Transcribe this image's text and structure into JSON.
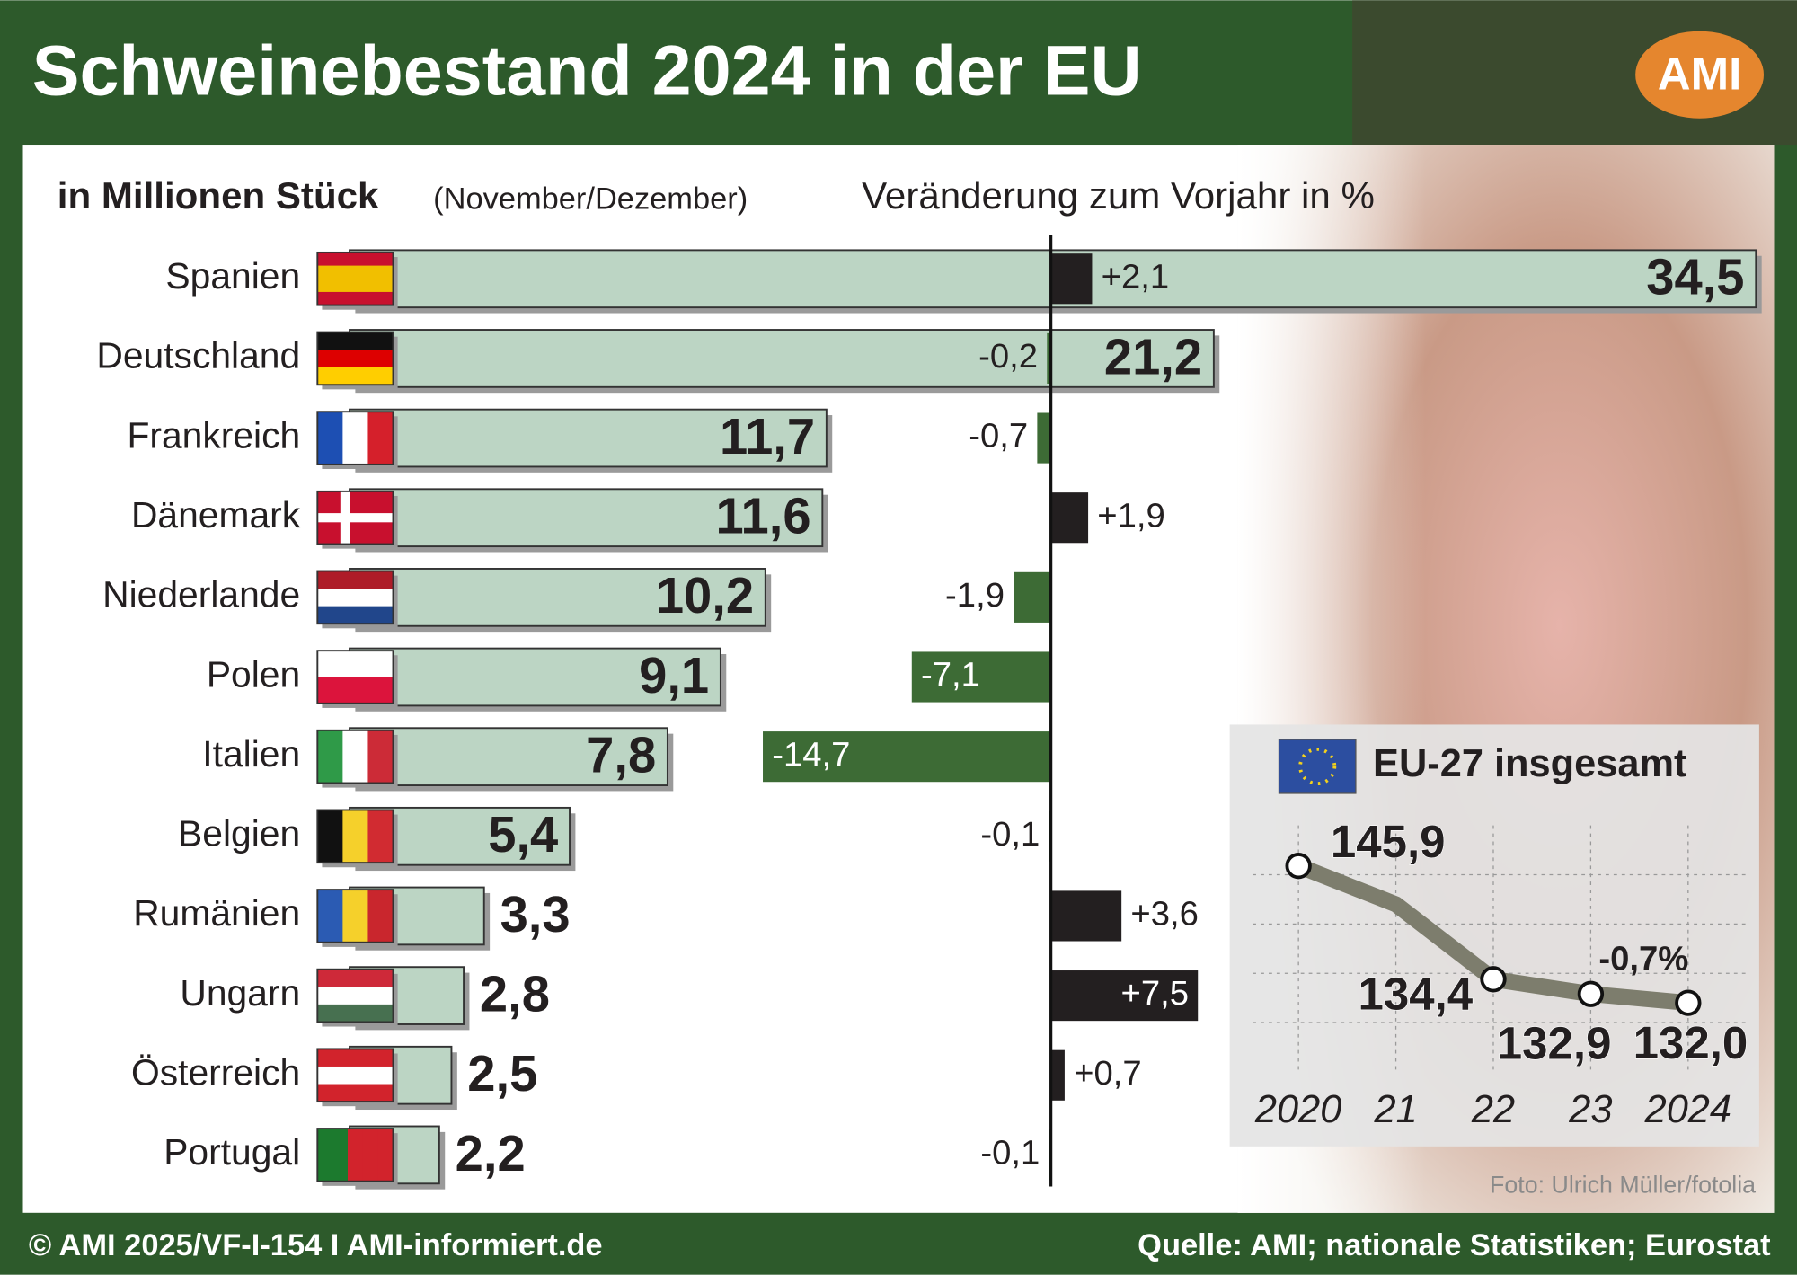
{
  "title": "Schweinebestand 2024 in der EU",
  "logo": "AMI",
  "footer_left": "© AMI 2025/VF-I-154 I AMI-informiert.de",
  "footer_right": "Quelle: AMI; nationale Statistiken; Eurostat",
  "photo_credit": "Foto: Ulrich Müller/fotolia",
  "chart_data": [
    {
      "type": "bar",
      "orientation": "horizontal",
      "title": "in Millionen Stück",
      "subtitle": "(November/Dezember)",
      "categories": [
        "Spanien",
        "Deutschland",
        "Frankreich",
        "Dänemark",
        "Niederlande",
        "Polen",
        "Italien",
        "Belgien",
        "Rumänien",
        "Ungarn",
        "Österreich",
        "Portugal"
      ],
      "values": [
        34.5,
        21.2,
        11.7,
        11.6,
        10.2,
        9.1,
        7.8,
        5.4,
        3.3,
        2.8,
        2.5,
        2.2
      ],
      "value_labels": [
        "34,5",
        "21,2",
        "11,7",
        "11,6",
        "10,2",
        "9,1",
        "7,8",
        "5,4",
        "3,3",
        "2,8",
        "2,5",
        "2,2"
      ],
      "xlim": [
        0,
        35
      ],
      "color": "#bcd5c4"
    },
    {
      "type": "bar",
      "orientation": "horizontal",
      "title": "Veränderung zum Vorjahr in %",
      "values": [
        2.1,
        -0.2,
        -0.7,
        1.9,
        -1.9,
        -7.1,
        -14.7,
        -0.1,
        3.6,
        7.5,
        0.7,
        -0.1
      ],
      "value_labels": [
        "+2,1",
        "-0,2",
        "-0,7",
        "+1,9",
        "-1,9",
        "-7,1",
        "-14,7",
        "-0,1",
        "+3,6",
        "+7,5",
        "+0,7",
        "-0,1"
      ],
      "xlim": [
        -15,
        8
      ],
      "positive_color": "#231f20",
      "negative_color": "#3d6b35"
    },
    {
      "type": "line",
      "title": "EU-27 insgesamt",
      "x": [
        "2020",
        "21",
        "22",
        "23",
        "2024"
      ],
      "values": [
        145.9,
        142.0,
        134.4,
        132.9,
        132.0
      ],
      "value_labels": [
        "145,9",
        null,
        "134,4",
        "132,9",
        "132,0"
      ],
      "annotation": "-0,7%",
      "ylim": [
        125,
        150
      ],
      "yticks": [
        130,
        135,
        140,
        145
      ],
      "grid": true,
      "color": "#7d7d6d"
    }
  ]
}
